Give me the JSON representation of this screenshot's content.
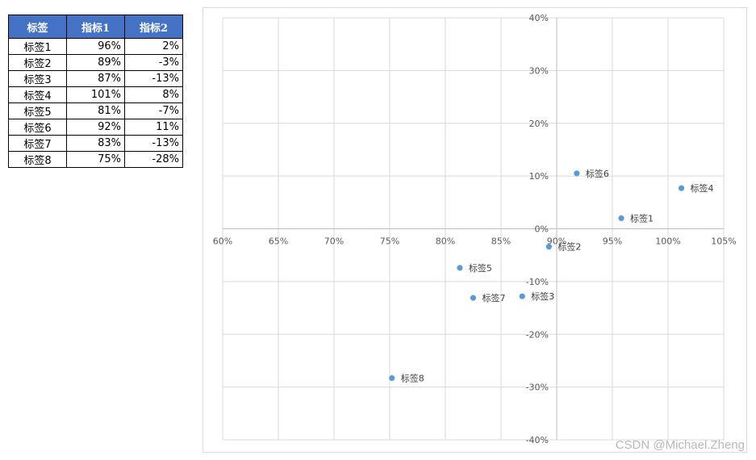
{
  "table": {
    "headers": [
      "标签",
      "指标1",
      "指标2"
    ],
    "rows": [
      [
        "标签1",
        "96%",
        "2%"
      ],
      [
        "标签2",
        "89%",
        "-3%"
      ],
      [
        "标签3",
        "87%",
        "-13%"
      ],
      [
        "标签4",
        "101%",
        "8%"
      ],
      [
        "标签5",
        "81%",
        "-7%"
      ],
      [
        "标签6",
        "92%",
        "11%"
      ],
      [
        "标签7",
        "83%",
        "-13%"
      ],
      [
        "标签8",
        "75%",
        "-28%"
      ]
    ]
  },
  "chart_data": {
    "type": "scatter",
    "title": "",
    "xlabel": "",
    "ylabel": "",
    "xlim": [
      0.6,
      1.05
    ],
    "ylim": [
      -0.4,
      0.4
    ],
    "x_ticks": [
      "60%",
      "65%",
      "70%",
      "75%",
      "80%",
      "85%",
      "90%",
      "95%",
      "100%",
      "105%"
    ],
    "y_ticks": [
      "40%",
      "30%",
      "20%",
      "10%",
      "0%",
      "-10%",
      "-20%",
      "-30%",
      "-40%"
    ],
    "grid": true,
    "legend": "none",
    "marker_color": "#5b9bd5",
    "points": [
      {
        "label": "标签1",
        "x": 0.958,
        "y": 0.02
      },
      {
        "label": "标签2",
        "x": 0.893,
        "y": -0.034
      },
      {
        "label": "标签3",
        "x": 0.869,
        "y": -0.128
      },
      {
        "label": "标签4",
        "x": 1.012,
        "y": 0.077
      },
      {
        "label": "标签5",
        "x": 0.813,
        "y": -0.074
      },
      {
        "label": "标签6",
        "x": 0.918,
        "y": 0.105
      },
      {
        "label": "标签7",
        "x": 0.825,
        "y": -0.131
      },
      {
        "label": "标签8",
        "x": 0.752,
        "y": -0.283
      }
    ]
  },
  "watermark": "CSDN @Michael.Zheng"
}
